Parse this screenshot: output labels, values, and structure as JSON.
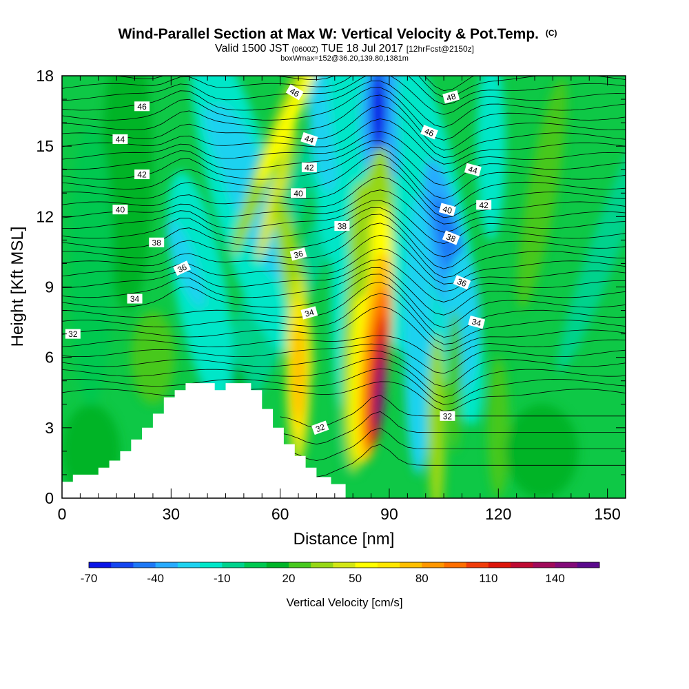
{
  "header": {
    "title_main": "Wind-Parallel Section at Max W: Vertical Velocity & Pot.Temp.",
    "title_mark": "(C)",
    "valid_a": "Valid 1500 JST",
    "valid_b": "(0600Z)",
    "valid_c": "TUE 18 Jul 2017",
    "valid_d": "[12hrFcst@2150z]",
    "box_info": "boxWmax=152@36.20,139.80,1381m"
  },
  "chart_data": {
    "type": "heatmap",
    "title": "Wind-Parallel Section at Max W: Vertical Velocity & Pot.Temp.",
    "xlabel": "Distance [nm]",
    "ylabel": "Height [Kft MSL]",
    "xlim": [
      0,
      155
    ],
    "ylim": [
      0,
      18
    ],
    "xticks": [
      0,
      30,
      60,
      90,
      120,
      150
    ],
    "yticks": [
      0,
      3,
      6,
      9,
      12,
      15,
      18
    ],
    "field": "Vertical Velocity",
    "contour_field": "Potential Temperature",
    "colorbar": {
      "label": "Vertical Velocity [cm/s]",
      "levels": [
        -70,
        -60,
        -50,
        -40,
        -30,
        -20,
        -10,
        0,
        10,
        20,
        30,
        40,
        50,
        60,
        70,
        80,
        90,
        100,
        110,
        120,
        130,
        140,
        150
      ],
      "tick_labels": [
        "-70",
        "-40",
        "-10",
        "20",
        "50",
        "80",
        "110",
        "140"
      ],
      "tick_values": [
        -70,
        -40,
        -10,
        20,
        50,
        80,
        110,
        140
      ],
      "colors": [
        "#0a14e6",
        "#1446f0",
        "#1e78f5",
        "#28aaff",
        "#1ed2f0",
        "#00e6c8",
        "#00d28c",
        "#00c850",
        "#00b428",
        "#46c81e",
        "#96d714",
        "#d2e614",
        "#ffff00",
        "#ffe600",
        "#ffbe00",
        "#ff9600",
        "#ff6e00",
        "#f03c0a",
        "#dc140a",
        "#be0a32",
        "#a00a5a",
        "#820a78",
        "#5a0a8c"
      ]
    },
    "updraft_cores": [
      {
        "x": 65,
        "z": 5.5,
        "w": 70
      },
      {
        "x": 87,
        "z": 4.5,
        "w": 152
      }
    ],
    "downdraft_cores": [
      {
        "x": 34,
        "z": 10,
        "w": -30
      },
      {
        "x": 52,
        "z": 14,
        "w": -35
      },
      {
        "x": 87,
        "z": 16.5,
        "w": -70
      },
      {
        "x": 107,
        "z": 10.5,
        "w": -50
      },
      {
        "x": 110,
        "z": 8,
        "w": -35
      }
    ],
    "terrain": [
      [
        0,
        0.7
      ],
      [
        3,
        0.7
      ],
      [
        3,
        1.0
      ],
      [
        10,
        1.0
      ],
      [
        10,
        1.3
      ],
      [
        13,
        1.3
      ],
      [
        13,
        1.6
      ],
      [
        16,
        1.6
      ],
      [
        16,
        2.0
      ],
      [
        19,
        2.0
      ],
      [
        19,
        2.5
      ],
      [
        22,
        2.5
      ],
      [
        22,
        3.0
      ],
      [
        25,
        3.0
      ],
      [
        25,
        3.6
      ],
      [
        28,
        3.6
      ],
      [
        28,
        4.3
      ],
      [
        31,
        4.3
      ],
      [
        31,
        4.6
      ],
      [
        34,
        4.6
      ],
      [
        34,
        4.9
      ],
      [
        42,
        4.9
      ],
      [
        42,
        4.6
      ],
      [
        45,
        4.6
      ],
      [
        45,
        4.9
      ],
      [
        52,
        4.9
      ],
      [
        52,
        4.6
      ],
      [
        55,
        4.6
      ],
      [
        55,
        3.8
      ],
      [
        58,
        3.8
      ],
      [
        58,
        3.0
      ],
      [
        61,
        3.0
      ],
      [
        61,
        2.3
      ],
      [
        64,
        2.3
      ],
      [
        64,
        1.8
      ],
      [
        67,
        1.8
      ],
      [
        67,
        1.3
      ],
      [
        70,
        1.3
      ],
      [
        70,
        0.9
      ],
      [
        74,
        0.9
      ],
      [
        74,
        0.6
      ],
      [
        78,
        0.6
      ],
      [
        78,
        0
      ],
      [
        0,
        0
      ]
    ],
    "theta_labels": [
      {
        "text": "46",
        "x": 22,
        "z": 16.7,
        "rot": 0
      },
      {
        "text": "44",
        "x": 16,
        "z": 15.3,
        "rot": 0
      },
      {
        "text": "42",
        "x": 22,
        "z": 13.8,
        "rot": 0
      },
      {
        "text": "40",
        "x": 16,
        "z": 12.3,
        "rot": 0
      },
      {
        "text": "38",
        "x": 26,
        "z": 10.9,
        "rot": 0
      },
      {
        "text": "36",
        "x": 33,
        "z": 9.8,
        "rot": -25
      },
      {
        "text": "34",
        "x": 20,
        "z": 8.5,
        "rot": 0
      },
      {
        "text": "32",
        "x": 3,
        "z": 7.0,
        "rot": 0
      },
      {
        "text": "46",
        "x": 64,
        "z": 17.3,
        "rot": 30
      },
      {
        "text": "44",
        "x": 68,
        "z": 15.3,
        "rot": 18
      },
      {
        "text": "42",
        "x": 68,
        "z": 14.1,
        "rot": 0
      },
      {
        "text": "40",
        "x": 65,
        "z": 13.0,
        "rot": 0
      },
      {
        "text": "38",
        "x": 77,
        "z": 11.6,
        "rot": 0
      },
      {
        "text": "36",
        "x": 65,
        "z": 10.4,
        "rot": -15
      },
      {
        "text": "34",
        "x": 68,
        "z": 7.9,
        "rot": -15
      },
      {
        "text": "32",
        "x": 71,
        "z": 3.0,
        "rot": -20
      },
      {
        "text": "48",
        "x": 107,
        "z": 17.1,
        "rot": -15
      },
      {
        "text": "46",
        "x": 101,
        "z": 15.6,
        "rot": 22
      },
      {
        "text": "44",
        "x": 113,
        "z": 14.0,
        "rot": 15
      },
      {
        "text": "42",
        "x": 116,
        "z": 12.5,
        "rot": 0
      },
      {
        "text": "40",
        "x": 106,
        "z": 12.3,
        "rot": 15
      },
      {
        "text": "38",
        "x": 107,
        "z": 11.1,
        "rot": 22
      },
      {
        "text": "36",
        "x": 110,
        "z": 9.2,
        "rot": 22
      },
      {
        "text": "34",
        "x": 114,
        "z": 7.5,
        "rot": 15
      },
      {
        "text": "32",
        "x": 106,
        "z": 3.5,
        "rot": 0
      }
    ]
  }
}
